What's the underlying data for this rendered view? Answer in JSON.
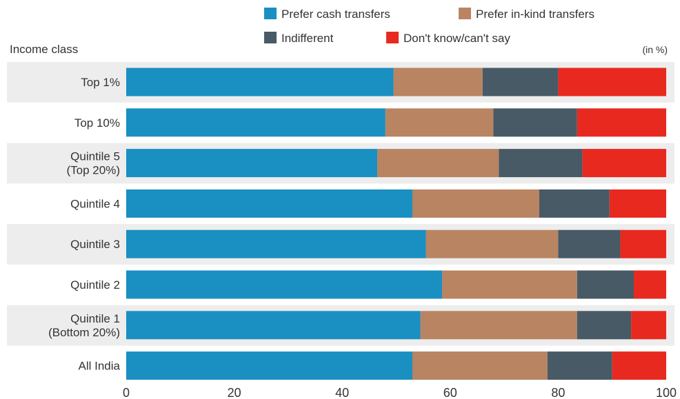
{
  "chart_data": {
    "type": "bar",
    "orientation": "horizontal",
    "stacked": true,
    "yaxis_title": "Income class",
    "unit_note": "(in %)",
    "categories": [
      [
        "Top 1%"
      ],
      [
        "Top 10%"
      ],
      [
        "Quintile 5",
        "(Top 20%)"
      ],
      [
        "Quintile 4"
      ],
      [
        "Quintile 3"
      ],
      [
        "Quintile 2"
      ],
      [
        "Quintile 1",
        "(Bottom 20%)"
      ],
      [
        "All India"
      ]
    ],
    "series": [
      {
        "name": "Prefer cash transfers",
        "color": "#1a8fc2",
        "values": [
          49.5,
          48,
          46.5,
          53,
          55.5,
          58.5,
          54.5,
          53
        ]
      },
      {
        "name": "Prefer in-kind transfers",
        "color": "#b98462",
        "values": [
          16.5,
          20,
          22.5,
          23.5,
          24.5,
          25,
          29,
          25
        ]
      },
      {
        "name": "Indifferent",
        "color": "#475a66",
        "values": [
          14,
          15.5,
          15.5,
          13,
          11.5,
          10.5,
          10,
          12
        ]
      },
      {
        "name": "Don't know/can't say",
        "color": "#e8291f",
        "values": [
          20,
          16.5,
          15.5,
          10.5,
          8.5,
          6,
          6.5,
          10
        ]
      }
    ],
    "xlim": [
      0,
      100
    ],
    "xticks": [
      0,
      20,
      40,
      60,
      80,
      100
    ],
    "legend_position": "top",
    "row_banding": true
  }
}
